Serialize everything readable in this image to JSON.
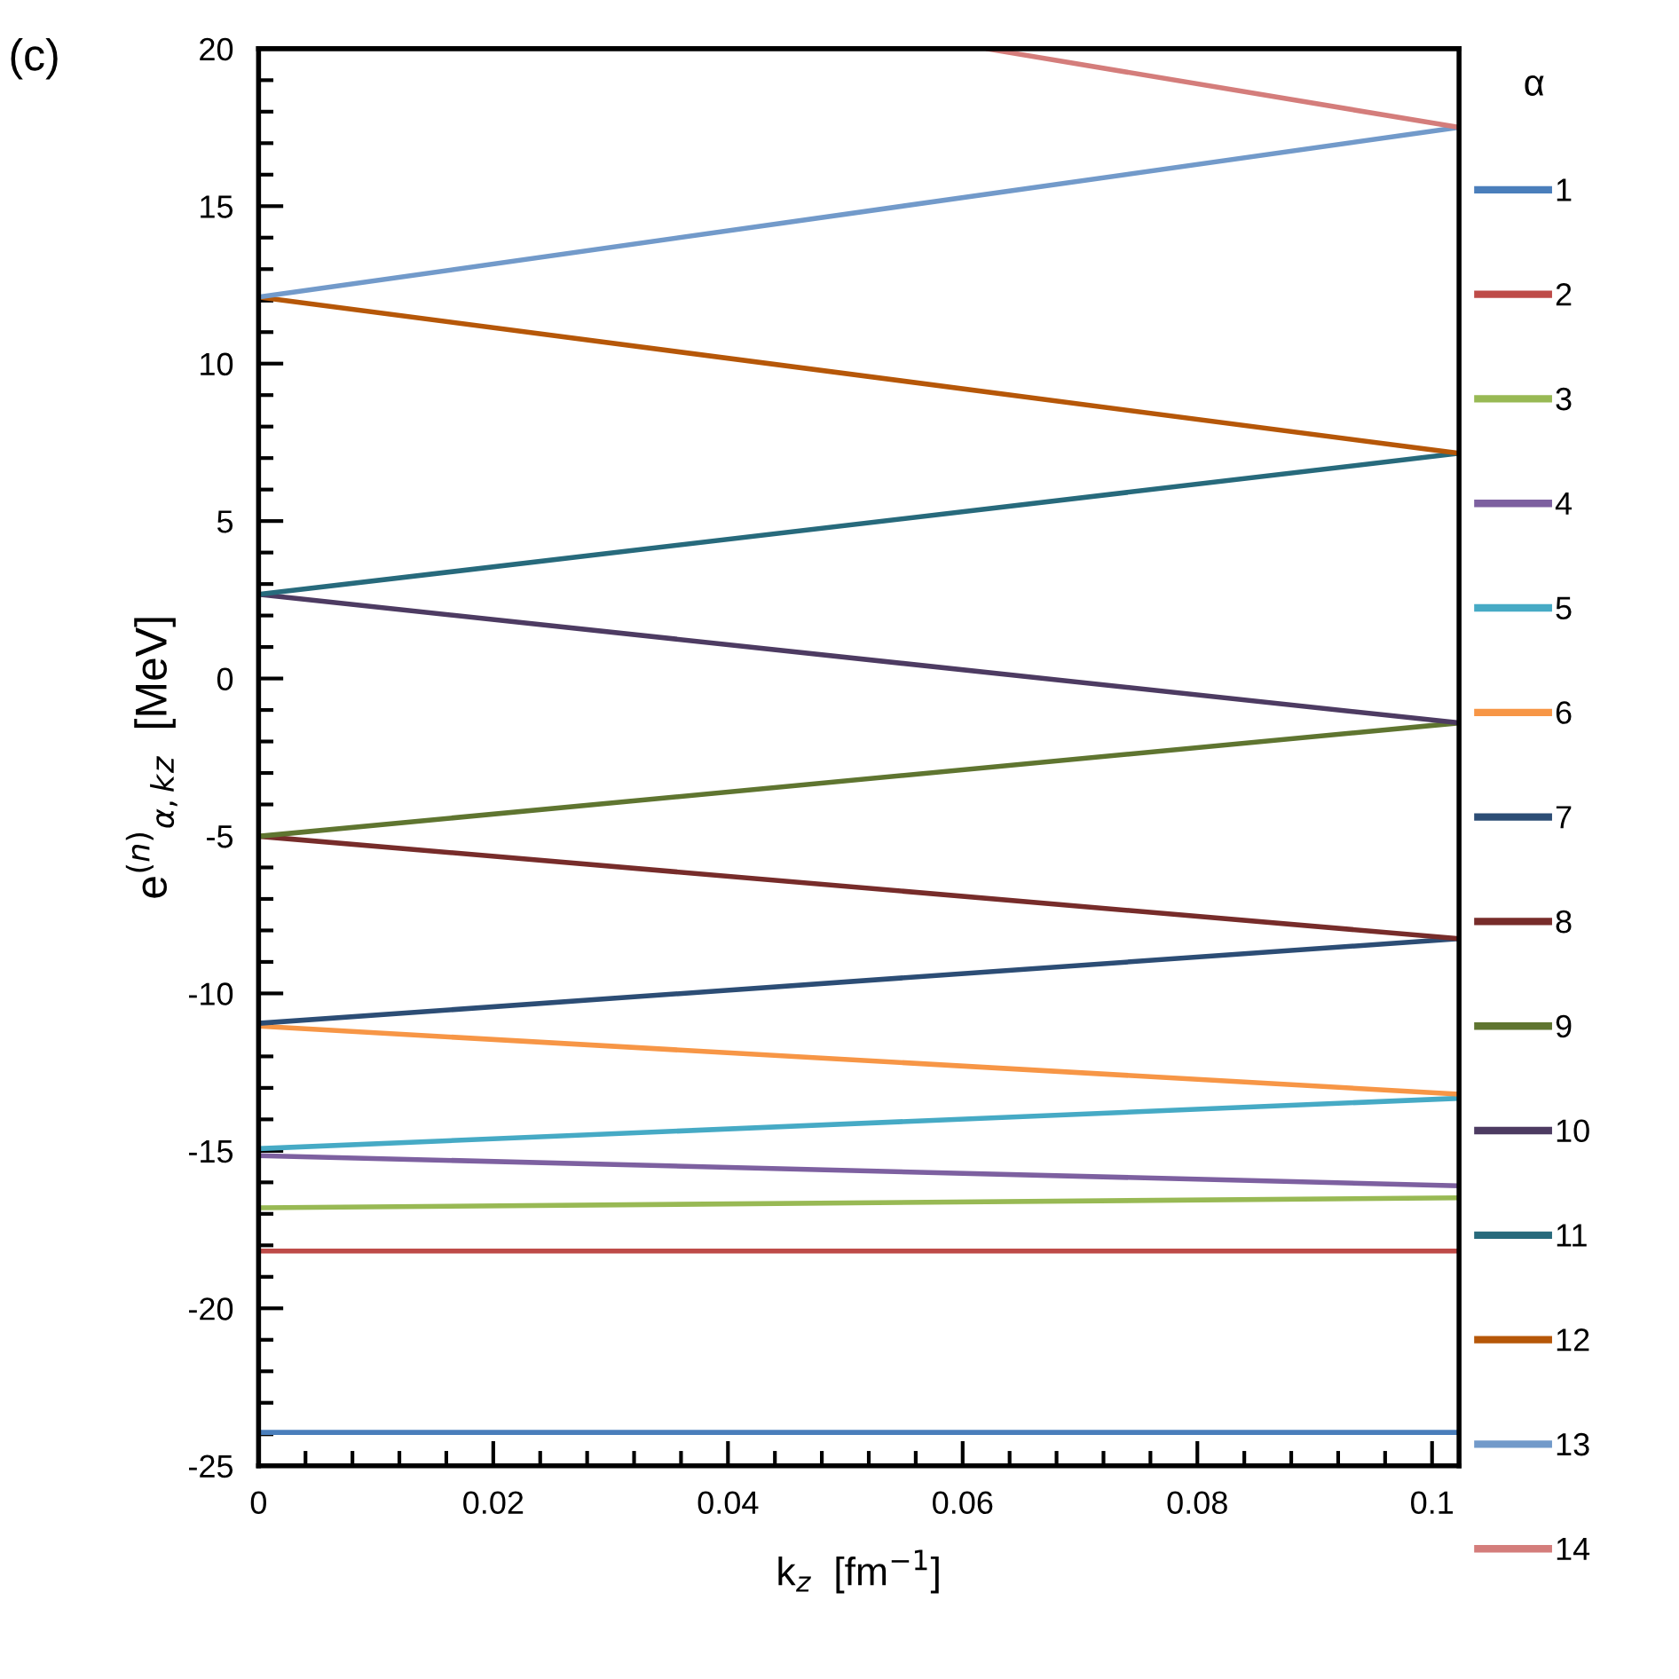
{
  "chart_data": {
    "type": "line",
    "xlabel": "k$_{z}$  [fm$^{−1}$]",
    "ylabel": "e$^{(n)}$$_{α,k}$$_{z}$  [MeV]",
    "legend_title": "α",
    "annotations": [
      "(c)"
    ],
    "xlim": [
      0,
      0.1023
    ],
    "ylim": [
      -25,
      20
    ],
    "xticks": [
      0,
      {
        "value": 0.004,
        "label": null
      },
      {
        "value": 0.008,
        "label": null
      },
      {
        "value": 0.012,
        "label": null
      },
      {
        "value": 0.016,
        "label": null
      },
      0.02,
      {
        "value": 0.024,
        "label": null
      },
      {
        "value": 0.028,
        "label": null
      },
      {
        "value": 0.032,
        "label": null
      },
      {
        "value": 0.036,
        "label": null
      },
      0.04,
      {
        "value": 0.044,
        "label": null
      },
      {
        "value": 0.048,
        "label": null
      },
      {
        "value": 0.052,
        "label": null
      },
      {
        "value": 0.056,
        "label": null
      },
      0.06,
      {
        "value": 0.064,
        "label": null
      },
      {
        "value": 0.068,
        "label": null
      },
      {
        "value": 0.072,
        "label": null
      },
      {
        "value": 0.076,
        "label": null
      },
      0.08,
      {
        "value": 0.084,
        "label": null
      },
      {
        "value": 0.088,
        "label": null
      },
      {
        "value": 0.092,
        "label": null
      },
      {
        "value": 0.096,
        "label": null
      },
      0.1
    ],
    "yticks": [
      -25,
      {
        "value": -24,
        "label": null
      },
      {
        "value": -23,
        "label": null
      },
      {
        "value": -22,
        "label": null
      },
      {
        "value": -21,
        "label": null
      },
      -20,
      {
        "value": -19,
        "label": null
      },
      {
        "value": -18,
        "label": null
      },
      {
        "value": -17,
        "label": null
      },
      {
        "value": -16,
        "label": null
      },
      -15,
      {
        "value": -14,
        "label": null
      },
      {
        "value": -13,
        "label": null
      },
      {
        "value": -12,
        "label": null
      },
      {
        "value": -11,
        "label": null
      },
      -10,
      {
        "value": -9,
        "label": null
      },
      {
        "value": -8,
        "label": null
      },
      {
        "value": -7,
        "label": null
      },
      {
        "value": -6,
        "label": null
      },
      -5,
      {
        "value": -4,
        "label": null
      },
      {
        "value": -3,
        "label": null
      },
      {
        "value": -2,
        "label": null
      },
      {
        "value": -1,
        "label": null
      },
      0,
      {
        "value": 1,
        "label": null
      },
      {
        "value": 2,
        "label": null
      },
      {
        "value": 3,
        "label": null
      },
      {
        "value": 4,
        "label": null
      },
      5,
      {
        "value": 6,
        "label": null
      },
      {
        "value": 7,
        "label": null
      },
      {
        "value": 8,
        "label": null
      },
      {
        "value": 9,
        "label": null
      },
      10,
      {
        "value": 11,
        "label": null
      },
      {
        "value": 12,
        "label": null
      },
      {
        "value": 13,
        "label": null
      },
      {
        "value": 14,
        "label": null
      },
      15,
      {
        "value": 16,
        "label": null
      },
      {
        "value": 17,
        "label": null
      },
      {
        "value": 18,
        "label": null
      },
      {
        "value": 19,
        "label": null
      },
      20
    ],
    "grid": false,
    "legend": "right",
    "marker": "none",
    "line_style": "solid",
    "series": [
      {
        "name": "1",
        "color": "#4a7ebb",
        "x": [
          0,
          0.1023
        ],
        "values": [
          -23.94,
          -23.94
        ]
      },
      {
        "name": "2",
        "color": "#be4b48",
        "x": [
          0,
          0.1023
        ],
        "values": [
          -18.18,
          -18.18
        ]
      },
      {
        "name": "3",
        "color": "#98b954",
        "x": [
          0,
          0.1023
        ],
        "values": [
          -16.81,
          -16.49
        ]
      },
      {
        "name": "4",
        "color": "#7d60a0",
        "x": [
          0,
          0.1023
        ],
        "values": [
          -15.15,
          -16.11
        ]
      },
      {
        "name": "5",
        "color": "#46aac5",
        "x": [
          0,
          0.1023
        ],
        "values": [
          -14.93,
          -13.33
        ]
      },
      {
        "name": "6",
        "color": "#f79646",
        "x": [
          0,
          0.1023
        ],
        "values": [
          -11.04,
          -13.2
        ]
      },
      {
        "name": "7",
        "color": "#2c4d75",
        "x": [
          0,
          0.1023
        ],
        "values": [
          -10.95,
          -8.26
        ]
      },
      {
        "name": "8",
        "color": "#772c2a",
        "x": [
          0,
          0.1023
        ],
        "values": [
          -5.01,
          -8.26
        ]
      },
      {
        "name": "9",
        "color": "#5f7530",
        "x": [
          0,
          0.1023
        ],
        "values": [
          -5.01,
          -1.41
        ]
      },
      {
        "name": "10",
        "color": "#4d3b62",
        "x": [
          0,
          0.1023
        ],
        "values": [
          2.67,
          -1.41
        ]
      },
      {
        "name": "11",
        "color": "#276a7c",
        "x": [
          0,
          0.1023
        ],
        "values": [
          2.67,
          7.15
        ]
      },
      {
        "name": "12",
        "color": "#b65708",
        "x": [
          0,
          0.1023
        ],
        "values": [
          12.11,
          7.15
        ]
      },
      {
        "name": "13",
        "color": "#729aca",
        "x": [
          0,
          0.1023
        ],
        "values": [
          12.11,
          17.5
        ]
      },
      {
        "name": "14",
        "color": "#d47d7b",
        "x": [
          0.062,
          0.1023
        ],
        "values": [
          20,
          17.5
        ]
      }
    ]
  }
}
